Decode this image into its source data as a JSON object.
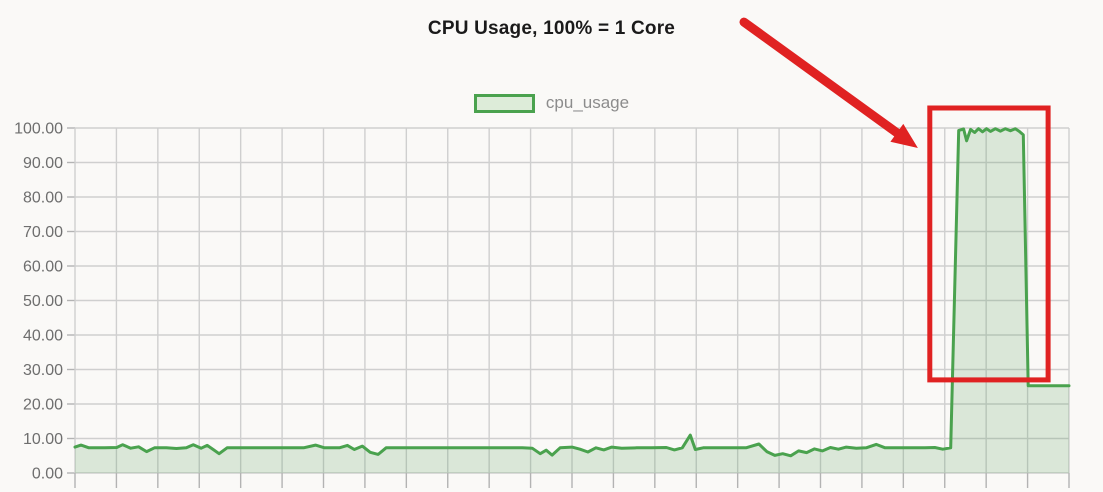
{
  "title": "CPU Usage, 100% = 1 Core",
  "legend": {
    "label": "cpu_usage",
    "swatch_fill": "#ddecd9",
    "swatch_border": "#4aa24e"
  },
  "colors": {
    "background": "#faf9f7",
    "grid": "#cfcfcf",
    "tick": "#b3b3b3",
    "axis_text": "#6e6e6e",
    "line": "#4aa24e",
    "area_fill": "rgba(92,161,96,0.20)",
    "annotation_red": "#e02222",
    "title_text": "#1a1a1a",
    "legend_text": "#8c8c8c"
  },
  "chart_data": {
    "type": "area",
    "title": "CPU Usage, 100% = 1 Core",
    "xlabel": "",
    "ylabel": "",
    "xlim": [
      0,
      100
    ],
    "ylim": [
      0,
      100
    ],
    "y_ticks": [
      0,
      10,
      20,
      30,
      40,
      50,
      60,
      70,
      80,
      90,
      100
    ],
    "y_tick_labels": [
      "0.00",
      "10.00",
      "20.00",
      "30.00",
      "40.00",
      "50.00",
      "60.00",
      "70.00",
      "80.00",
      "90.00",
      "100.00"
    ],
    "x_gridline_intervals": 24,
    "x_tick_labels": [],
    "grid": true,
    "legend_position": "top-center",
    "series": [
      {
        "name": "cpu_usage",
        "points": [
          [
            0,
            7.5
          ],
          [
            0.6,
            8.1
          ],
          [
            1.4,
            7.3
          ],
          [
            3,
            7.3
          ],
          [
            4.2,
            7.4
          ],
          [
            4.8,
            8.2
          ],
          [
            5.6,
            7.2
          ],
          [
            6.4,
            7.6
          ],
          [
            7.2,
            6.2
          ],
          [
            8,
            7.3
          ],
          [
            9.2,
            7.3
          ],
          [
            10.2,
            7.1
          ],
          [
            11.2,
            7.3
          ],
          [
            11.9,
            8.2
          ],
          [
            12.7,
            7.2
          ],
          [
            13.3,
            8
          ],
          [
            13.9,
            6.8
          ],
          [
            14.5,
            5.6
          ],
          [
            15.3,
            7.3
          ],
          [
            17,
            7.3
          ],
          [
            19,
            7.3
          ],
          [
            21,
            7.3
          ],
          [
            23,
            7.3
          ],
          [
            24.2,
            8.1
          ],
          [
            25.1,
            7.3
          ],
          [
            26.6,
            7.3
          ],
          [
            27.4,
            8
          ],
          [
            28.1,
            6.8
          ],
          [
            28.9,
            7.8
          ],
          [
            29.7,
            6
          ],
          [
            30.5,
            5.4
          ],
          [
            31.3,
            7.3
          ],
          [
            33,
            7.3
          ],
          [
            35,
            7.3
          ],
          [
            37,
            7.3
          ],
          [
            39,
            7.3
          ],
          [
            41,
            7.3
          ],
          [
            43,
            7.3
          ],
          [
            45,
            7.3
          ],
          [
            46,
            7.2
          ],
          [
            46.8,
            5.6
          ],
          [
            47.4,
            6.6
          ],
          [
            48,
            5.2
          ],
          [
            48.8,
            7.3
          ],
          [
            50,
            7.5
          ],
          [
            50.8,
            6.9
          ],
          [
            51.6,
            6.1
          ],
          [
            52.4,
            7.3
          ],
          [
            53.2,
            6.7
          ],
          [
            54,
            7.5
          ],
          [
            55,
            7.2
          ],
          [
            56.5,
            7.3
          ],
          [
            58,
            7.3
          ],
          [
            59.5,
            7.4
          ],
          [
            60.3,
            6.7
          ],
          [
            61.1,
            7.3
          ],
          [
            61.9,
            11
          ],
          [
            62.4,
            6.8
          ],
          [
            63.2,
            7.3
          ],
          [
            64.5,
            7.3
          ],
          [
            66,
            7.3
          ],
          [
            67.5,
            7.3
          ],
          [
            68.8,
            8.4
          ],
          [
            69.6,
            6.2
          ],
          [
            70.4,
            5.1
          ],
          [
            71.2,
            5.6
          ],
          [
            72,
            5
          ],
          [
            72.8,
            6.4
          ],
          [
            73.6,
            5.9
          ],
          [
            74.4,
            7
          ],
          [
            75.2,
            6.4
          ],
          [
            76,
            7.4
          ],
          [
            76.8,
            6.9
          ],
          [
            77.6,
            7.5
          ],
          [
            78.6,
            7.2
          ],
          [
            79.6,
            7.3
          ],
          [
            80.6,
            8.3
          ],
          [
            81.5,
            7.3
          ],
          [
            82.6,
            7.3
          ],
          [
            84,
            7.3
          ],
          [
            85.5,
            7.3
          ],
          [
            86.5,
            7.4
          ],
          [
            87.3,
            6.9
          ],
          [
            88.1,
            7.3
          ],
          [
            88.9,
            99.3
          ],
          [
            89.4,
            99.7
          ],
          [
            89.7,
            96.3
          ],
          [
            90.1,
            99.6
          ],
          [
            90.5,
            98.7
          ],
          [
            90.9,
            99.8
          ],
          [
            91.3,
            98.9
          ],
          [
            91.7,
            99.8
          ],
          [
            92.1,
            99
          ],
          [
            92.6,
            99.8
          ],
          [
            93.1,
            99.1
          ],
          [
            93.6,
            99.8
          ],
          [
            94.1,
            99.2
          ],
          [
            94.6,
            99.8
          ],
          [
            95,
            99
          ],
          [
            95.4,
            98
          ],
          [
            95.9,
            25.3
          ],
          [
            100,
            25.3
          ]
        ]
      }
    ],
    "annotations": {
      "highlight_box": {
        "t0": 86.0,
        "t1": 97.9,
        "v0": 27.0,
        "v1": 105.8
      },
      "arrow": {
        "from_t": 67.3,
        "from_v": 130.7,
        "to_t": 84.8,
        "to_v": 94.2
      }
    }
  }
}
